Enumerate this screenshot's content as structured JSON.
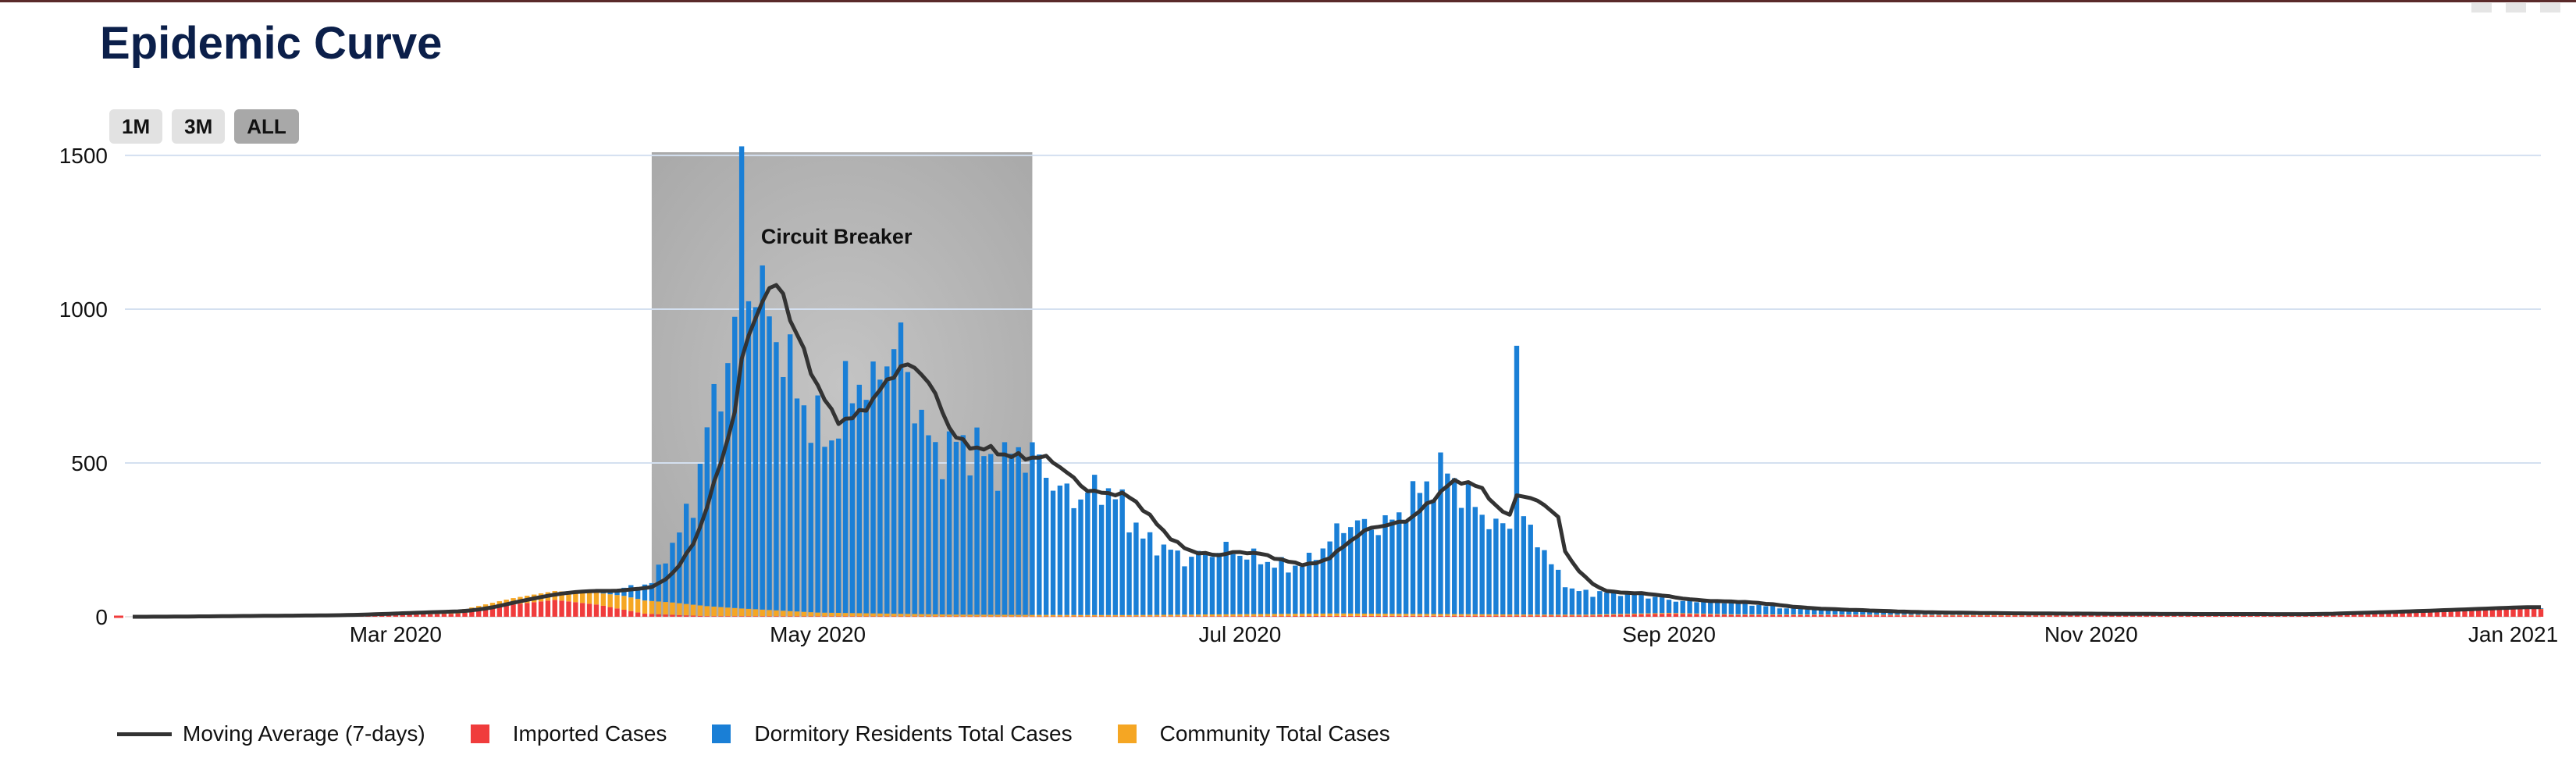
{
  "title": "Epidemic Curve",
  "range_selector": {
    "buttons": [
      {
        "label": "1M"
      },
      {
        "label": "3M"
      },
      {
        "label": "ALL"
      }
    ],
    "active": "ALL"
  },
  "colors": {
    "imported": "#f03c3c",
    "dormitory": "#1a7fd6",
    "community": "#f5a623",
    "moving_average": "#333333",
    "band": "#b8b8b8",
    "grid": "#d4e0f0"
  },
  "chart_data": {
    "type": "bar",
    "stacked": true,
    "x_start": "2020-01-23",
    "x_end": "2021-01-05",
    "x_ticks": [
      {
        "date": "2020-03-01",
        "label": "Mar 2020"
      },
      {
        "date": "2020-05-01",
        "label": "May 2020"
      },
      {
        "date": "2020-07-01",
        "label": "Jul 2020"
      },
      {
        "date": "2020-09-01",
        "label": "Sep 2020"
      },
      {
        "date": "2020-11-01",
        "label": "Nov 2020"
      },
      {
        "date": "2021-01-01",
        "label": "Jan 2021"
      }
    ],
    "y_ticks": [
      0,
      500,
      1000,
      1500
    ],
    "ylim": [
      0,
      1650
    ],
    "band": {
      "start": "2020-04-07",
      "end": "2020-06-01",
      "label": "Circuit Breaker"
    },
    "series": [
      {
        "name": "Moving Average (7-days)",
        "type": "line"
      },
      {
        "name": "Imported Cases",
        "type": "bar"
      },
      {
        "name": "Dormitory Residents Total Cases",
        "type": "bar"
      },
      {
        "name": "Community Total Cases",
        "type": "bar"
      }
    ],
    "dormitory_key_points": [
      [
        "2020-03-25",
        0
      ],
      [
        "2020-04-01",
        10
      ],
      [
        "2020-04-07",
        60
      ],
      [
        "2020-04-10",
        190
      ],
      [
        "2020-04-13",
        330
      ],
      [
        "2020-04-15",
        580
      ],
      [
        "2020-04-17",
        720
      ],
      [
        "2020-04-19",
        900
      ],
      [
        "2020-04-20",
        1420
      ],
      [
        "2020-04-21",
        1080
      ],
      [
        "2020-04-23",
        1010
      ],
      [
        "2020-04-25",
        900
      ],
      [
        "2020-04-27",
        780
      ],
      [
        "2020-04-30",
        620
      ],
      [
        "2020-05-03",
        560
      ],
      [
        "2020-05-05",
        700
      ],
      [
        "2020-05-07",
        760
      ],
      [
        "2020-05-09",
        720
      ],
      [
        "2020-05-11",
        860
      ],
      [
        "2020-05-13",
        870
      ],
      [
        "2020-05-15",
        700
      ],
      [
        "2020-05-17",
        560
      ],
      [
        "2020-05-19",
        520
      ],
      [
        "2020-05-21",
        560
      ],
      [
        "2020-05-24",
        540
      ],
      [
        "2020-05-27",
        480
      ],
      [
        "2020-05-30",
        540
      ],
      [
        "2020-06-02",
        500
      ],
      [
        "2020-06-05",
        400
      ],
      [
        "2020-06-08",
        380
      ],
      [
        "2020-06-11",
        420
      ],
      [
        "2020-06-14",
        360
      ],
      [
        "2020-06-17",
        250
      ],
      [
        "2020-06-20",
        220
      ],
      [
        "2020-06-23",
        180
      ],
      [
        "2020-06-26",
        200
      ],
      [
        "2020-06-29",
        210
      ],
      [
        "2020-07-02",
        190
      ],
      [
        "2020-07-05",
        170
      ],
      [
        "2020-07-08",
        150
      ],
      [
        "2020-07-11",
        170
      ],
      [
        "2020-07-14",
        240
      ],
      [
        "2020-07-17",
        300
      ],
      [
        "2020-07-20",
        280
      ],
      [
        "2020-07-23",
        300
      ],
      [
        "2020-07-26",
        380
      ],
      [
        "2020-07-29",
        440
      ],
      [
        "2020-07-31",
        470
      ],
      [
        "2020-08-02",
        400
      ],
      [
        "2020-08-05",
        330
      ],
      [
        "2020-08-07",
        280
      ],
      [
        "2020-08-09",
        300
      ],
      [
        "2020-08-10",
        905
      ],
      [
        "2020-08-11",
        300
      ],
      [
        "2020-08-13",
        250
      ],
      [
        "2020-08-15",
        160
      ],
      [
        "2020-08-18",
        80
      ],
      [
        "2020-08-21",
        70
      ],
      [
        "2020-08-25",
        70
      ],
      [
        "2020-08-29",
        55
      ],
      [
        "2020-09-02",
        40
      ],
      [
        "2020-09-06",
        40
      ],
      [
        "2020-09-10",
        40
      ],
      [
        "2020-09-14",
        30
      ],
      [
        "2020-09-18",
        20
      ],
      [
        "2020-09-25",
        15
      ],
      [
        "2020-10-05",
        8
      ],
      [
        "2020-10-20",
        5
      ],
      [
        "2020-11-10",
        3
      ],
      [
        "2020-12-10",
        2
      ],
      [
        "2021-01-05",
        2
      ]
    ],
    "community_key_points": [
      [
        "2020-01-23",
        0
      ],
      [
        "2020-02-05",
        2
      ],
      [
        "2020-02-20",
        4
      ],
      [
        "2020-03-10",
        10
      ],
      [
        "2020-03-25",
        30
      ],
      [
        "2020-04-03",
        45
      ],
      [
        "2020-04-10",
        40
      ],
      [
        "2020-04-20",
        25
      ],
      [
        "2020-05-01",
        12
      ],
      [
        "2020-05-20",
        6
      ],
      [
        "2020-06-15",
        4
      ],
      [
        "2020-07-15",
        8
      ],
      [
        "2020-08-15",
        3
      ],
      [
        "2020-09-15",
        2
      ],
      [
        "2021-01-05",
        1
      ]
    ],
    "imported_key_points": [
      [
        "2020-01-23",
        0
      ],
      [
        "2020-02-20",
        1
      ],
      [
        "2020-03-10",
        10
      ],
      [
        "2020-03-18",
        40
      ],
      [
        "2020-03-24",
        55
      ],
      [
        "2020-03-30",
        40
      ],
      [
        "2020-04-06",
        10
      ],
      [
        "2020-04-15",
        2
      ],
      [
        "2020-06-01",
        1
      ],
      [
        "2020-08-20",
        4
      ],
      [
        "2020-09-01",
        10
      ],
      [
        "2020-09-10",
        6
      ],
      [
        "2020-10-15",
        4
      ],
      [
        "2020-12-01",
        5
      ],
      [
        "2020-12-15",
        15
      ],
      [
        "2021-01-02",
        30
      ],
      [
        "2021-01-05",
        25
      ]
    ]
  },
  "legend": {
    "items": [
      {
        "label": "Moving Average (7-days)"
      },
      {
        "label": "Imported Cases"
      },
      {
        "label": "Dormitory Residents Total Cases"
      },
      {
        "label": "Community Total Cases"
      }
    ]
  }
}
